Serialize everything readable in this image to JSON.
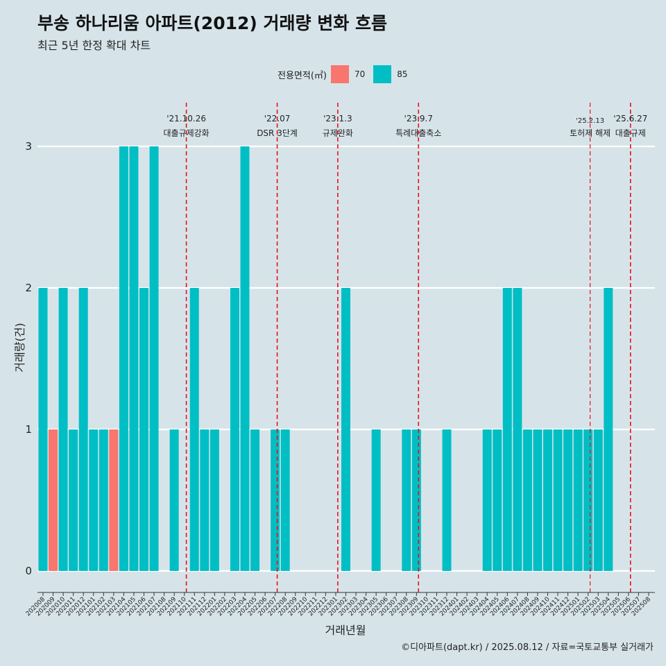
{
  "title": "부송 하나리움 아파트(2012) 거래량 변화 흐름",
  "subtitle": "최근 5년 한정 확대 차트",
  "caption": "©디아파트(dapt.kr) / 2025.08.12 / 자료=국토교통부 실거래가",
  "legend": {
    "title": "전용면적(㎡)",
    "items": [
      {
        "label": "70",
        "color": "#f8766d"
      },
      {
        "label": "85",
        "color": "#00bfc4"
      }
    ]
  },
  "chart_data": {
    "type": "bar",
    "stacked": true,
    "xlabel": "거래년월",
    "ylabel": "거래량(건)",
    "ylim": [
      0,
      3
    ],
    "yticks": [
      0,
      1,
      2,
      3
    ],
    "grid": true,
    "legend_position": "top",
    "categories": [
      "202008",
      "202009",
      "202010",
      "202011",
      "202012",
      "202101",
      "202102",
      "202103",
      "202104",
      "202105",
      "202106",
      "202107",
      "202108",
      "202109",
      "202110",
      "202111",
      "202112",
      "202201",
      "202202",
      "202203",
      "202204",
      "202205",
      "202206",
      "202207",
      "202208",
      "202209",
      "202210",
      "202211",
      "202212",
      "202301",
      "202302",
      "202303",
      "202304",
      "202305",
      "202306",
      "202307",
      "202308",
      "202309",
      "202310",
      "202311",
      "202312",
      "202401",
      "202402",
      "202403",
      "202404",
      "202405",
      "202406",
      "202407",
      "202408",
      "202409",
      "202410",
      "202411",
      "202412",
      "202501",
      "202502",
      "202503",
      "202504",
      "202505",
      "202506",
      "202507",
      "202508"
    ],
    "series": [
      {
        "name": "70",
        "color": "#f8766d",
        "values": [
          0,
          1,
          0,
          0,
          0,
          0,
          0,
          1,
          0,
          0,
          0,
          0,
          0,
          0,
          0,
          0,
          0,
          0,
          0,
          0,
          0,
          0,
          0,
          0,
          0,
          0,
          0,
          0,
          0,
          0,
          0,
          0,
          0,
          0,
          0,
          0,
          0,
          0,
          0,
          0,
          0,
          0,
          0,
          0,
          0,
          0,
          0,
          0,
          0,
          0,
          0,
          0,
          0,
          0,
          0,
          0,
          0,
          0,
          0,
          0,
          0
        ]
      },
      {
        "name": "85",
        "color": "#00bfc4",
        "values": [
          2,
          0,
          2,
          1,
          2,
          1,
          1,
          0,
          3,
          3,
          2,
          3,
          0,
          1,
          0,
          2,
          1,
          1,
          0,
          2,
          3,
          1,
          0,
          1,
          1,
          0,
          0,
          0,
          0,
          0,
          2,
          0,
          0,
          1,
          0,
          0,
          1,
          1,
          0,
          0,
          1,
          0,
          0,
          0,
          1,
          1,
          2,
          2,
          1,
          1,
          1,
          1,
          1,
          1,
          1,
          1,
          2,
          0,
          0,
          0,
          0
        ]
      }
    ],
    "annotations": [
      {
        "date": "'21.10.26",
        "label": "대출규제강화",
        "x_index": 14.2,
        "small": false
      },
      {
        "date": "'22.07",
        "label": "DSR 3단계",
        "x_index": 23.2,
        "small": false
      },
      {
        "date": "'23.1.3",
        "label": "규제완화",
        "x_index": 29.2,
        "small": false
      },
      {
        "date": "'23.9.7",
        "label": "특례대출축소",
        "x_index": 37.2,
        "small": false
      },
      {
        "date": "'25.2.13",
        "label": "토허제 해제",
        "x_index": 54.2,
        "small": true
      },
      {
        "date": "'25.6.27",
        "label": "대출규제",
        "x_index": 58.2,
        "small": false
      }
    ]
  }
}
